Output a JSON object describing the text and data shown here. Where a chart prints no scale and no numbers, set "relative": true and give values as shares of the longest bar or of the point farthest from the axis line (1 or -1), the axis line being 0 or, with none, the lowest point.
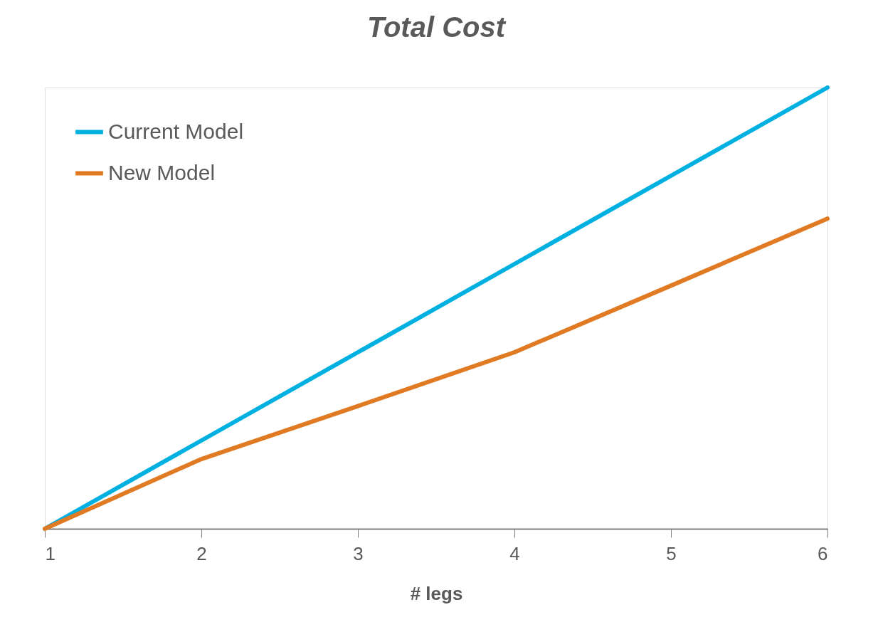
{
  "chart_data": {
    "type": "line",
    "title": "Total Cost",
    "xlabel": "# legs",
    "relative": true,
    "x": [
      1,
      2,
      3,
      4,
      5,
      6
    ],
    "xlim": [
      1,
      6
    ],
    "xticks": [
      1,
      2,
      3,
      4,
      5,
      6
    ],
    "series": [
      {
        "name": "Current Model",
        "color": "#00b0e0",
        "values": [
          0,
          0.2,
          0.4,
          0.6,
          0.8,
          1.0
        ]
      },
      {
        "name": "New Model",
        "color": "#e07b24",
        "values": [
          0,
          0.158,
          0.278,
          0.4,
          0.551,
          0.703
        ]
      }
    ],
    "legend": "top left",
    "grid": false,
    "marker": "none",
    "line_style": "solid"
  }
}
